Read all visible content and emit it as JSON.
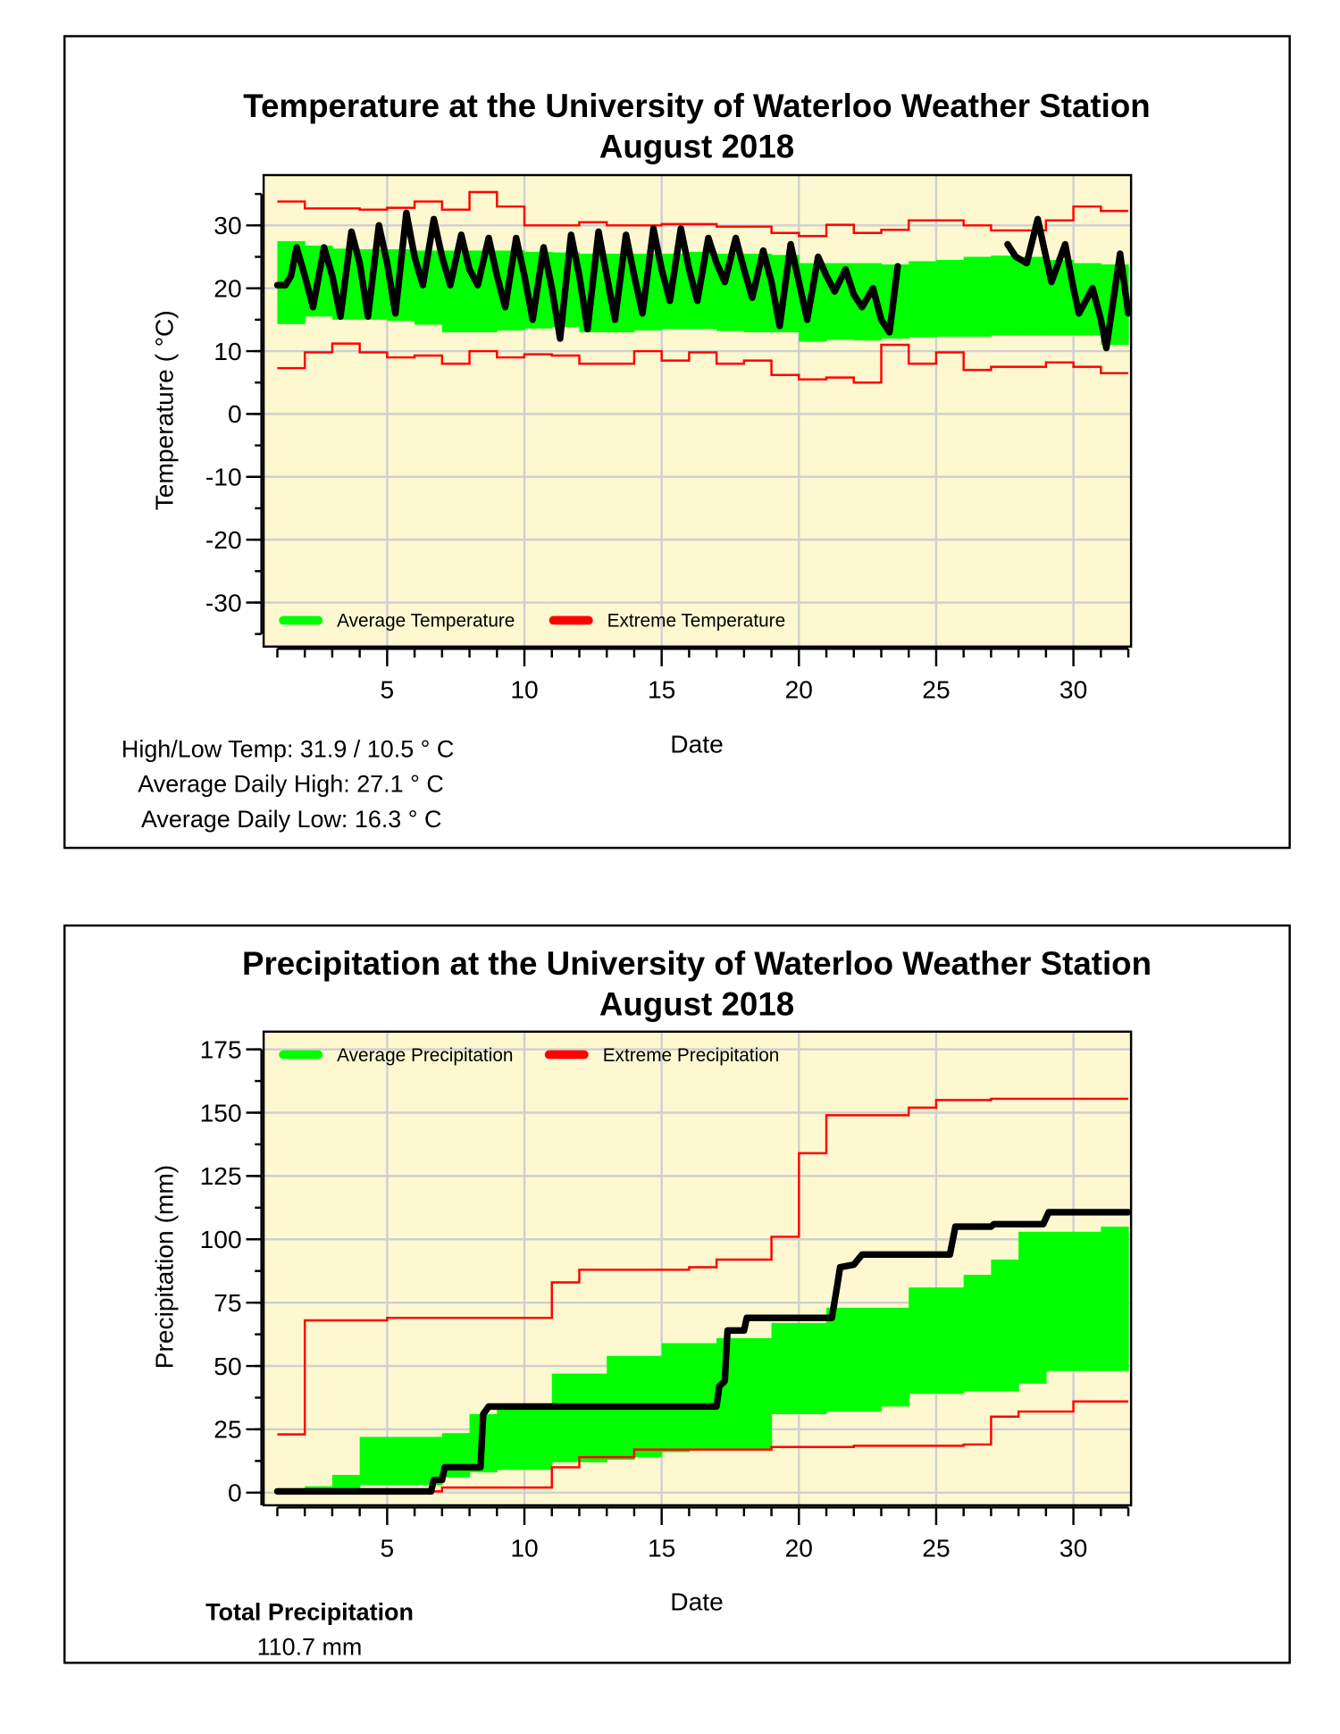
{
  "chart_data": [
    {
      "type": "line",
      "title": "Temperature at the University of Waterloo Weather Station",
      "subtitle": "August 2018",
      "xlabel": "Date",
      "ylabel": "Temperature ( °C)",
      "xlim": [
        0.5,
        32.1
      ],
      "ylim": [
        -37,
        38
      ],
      "xticks": [
        5,
        10,
        15,
        20,
        25,
        30
      ],
      "yticks": [
        30,
        20,
        10,
        0,
        -10,
        -20,
        -30
      ],
      "grid": true,
      "legend": {
        "placement": "bottom-left",
        "entries": [
          "Average Temperature",
          "Extreme Temperature"
        ]
      },
      "colors": {
        "average": "#00ff00",
        "extreme": "#ff0000",
        "observed": "#000000",
        "background": "#fdf8d0"
      },
      "average_band": {
        "days": [
          1,
          2,
          3,
          4,
          5,
          6,
          7,
          8,
          9,
          10,
          11,
          12,
          13,
          14,
          15,
          16,
          17,
          18,
          19,
          20,
          21,
          22,
          23,
          24,
          25,
          26,
          27,
          28,
          29,
          30,
          31
        ],
        "high": [
          27.5,
          26.8,
          26.3,
          26.2,
          26.2,
          26,
          26,
          26,
          26,
          25.8,
          25.7,
          25.5,
          25.5,
          25.5,
          25.5,
          25.8,
          25.5,
          25.5,
          25.3,
          24,
          24,
          24,
          23.8,
          24.3,
          24.5,
          25,
          25.2,
          25,
          24.5,
          24,
          23.8
        ],
        "low": [
          14.3,
          15.5,
          15,
          15,
          14.8,
          14.2,
          13,
          13,
          13.3,
          13.6,
          13.8,
          13,
          13,
          13.3,
          13.5,
          13.5,
          13.2,
          13,
          13,
          11.5,
          11.8,
          11.7,
          12,
          12.2,
          12.3,
          12.3,
          12.5,
          12.5,
          12.5,
          12.5,
          11
        ]
      },
      "extreme_max": [
        33.8,
        32.7,
        32.7,
        32.5,
        32.8,
        33.8,
        32.5,
        35.3,
        33,
        30,
        30,
        30.5,
        30,
        30,
        30.2,
        30.2,
        29.8,
        29.8,
        28.8,
        28.3,
        30.1,
        28.8,
        29.3,
        30.8,
        30.8,
        30,
        29.2,
        29.2,
        30.8,
        33,
        32.3
      ],
      "extreme_min": [
        7.3,
        9.8,
        11.2,
        9.8,
        9,
        9.3,
        8,
        10,
        9,
        9.5,
        9.3,
        8,
        8,
        10,
        8.5,
        9.8,
        8,
        8.5,
        6.2,
        5.5,
        5.8,
        5,
        11,
        8,
        9.8,
        7,
        7.5,
        7.5,
        8.2,
        7.5,
        6.5
      ],
      "observed_segments": [
        [
          [
            1,
            20.5
          ],
          [
            1.3,
            20.5
          ],
          [
            1.5,
            22
          ],
          [
            1.7,
            26.5
          ],
          [
            2.0,
            22
          ],
          [
            2.3,
            17
          ],
          [
            2.7,
            26.5
          ],
          [
            3.0,
            22
          ],
          [
            3.3,
            15.5
          ],
          [
            3.7,
            29
          ],
          [
            4.0,
            24
          ],
          [
            4.3,
            15.5
          ],
          [
            4.7,
            30
          ],
          [
            5.0,
            24
          ],
          [
            5.3,
            16
          ],
          [
            5.7,
            32
          ],
          [
            6.0,
            25
          ],
          [
            6.3,
            20.5
          ],
          [
            6.7,
            31
          ],
          [
            7.0,
            25
          ],
          [
            7.3,
            20.5
          ],
          [
            7.7,
            28.5
          ],
          [
            8.0,
            23
          ],
          [
            8.3,
            20.5
          ],
          [
            8.7,
            28
          ],
          [
            9.0,
            22
          ],
          [
            9.3,
            17
          ],
          [
            9.7,
            28
          ],
          [
            10.0,
            22
          ],
          [
            10.3,
            15
          ],
          [
            10.7,
            26.5
          ],
          [
            11.0,
            20
          ],
          [
            11.3,
            12
          ],
          [
            11.7,
            28.5
          ],
          [
            12.0,
            22
          ],
          [
            12.3,
            13.5
          ],
          [
            12.7,
            29
          ],
          [
            13.0,
            22
          ],
          [
            13.3,
            15
          ],
          [
            13.7,
            28.5
          ],
          [
            14.0,
            22
          ],
          [
            14.3,
            16
          ],
          [
            14.7,
            29.5
          ],
          [
            15.0,
            23
          ],
          [
            15.3,
            18
          ],
          [
            15.7,
            29.5
          ],
          [
            16.0,
            23
          ],
          [
            16.3,
            18
          ],
          [
            16.7,
            28
          ],
          [
            17.0,
            24
          ],
          [
            17.3,
            21
          ],
          [
            17.7,
            28
          ],
          [
            18.0,
            23
          ],
          [
            18.3,
            18.5
          ],
          [
            18.7,
            26
          ],
          [
            19.0,
            21
          ],
          [
            19.3,
            14
          ],
          [
            19.7,
            27
          ],
          [
            20.0,
            21
          ],
          [
            20.3,
            15
          ],
          [
            20.7,
            25
          ],
          [
            21.0,
            22
          ],
          [
            21.3,
            19.5
          ],
          [
            21.7,
            23
          ],
          [
            22.0,
            19
          ],
          [
            22.3,
            17
          ],
          [
            22.7,
            20
          ],
          [
            23.0,
            15
          ],
          [
            23.3,
            13
          ],
          [
            23.6,
            23.5
          ]
        ],
        [
          [
            27.6,
            27
          ],
          [
            27.9,
            25
          ],
          [
            28.3,
            24
          ],
          [
            28.7,
            31
          ],
          [
            29.0,
            25
          ],
          [
            29.2,
            21
          ],
          [
            29.7,
            27
          ],
          [
            30.0,
            20
          ],
          [
            30.2,
            16
          ],
          [
            30.7,
            20
          ],
          [
            31.0,
            15
          ],
          [
            31.2,
            10.5
          ],
          [
            31.7,
            25.5
          ],
          [
            32.0,
            16
          ]
        ]
      ]
    },
    {
      "type": "line",
      "title": "Precipitation at the University of Waterloo Weather Station",
      "subtitle": "August 2018",
      "xlabel": "Date",
      "ylabel": "Precipitation (mm)",
      "xlim": [
        0.5,
        32.1
      ],
      "ylim": [
        -5,
        182
      ],
      "xticks": [
        5,
        10,
        15,
        20,
        25,
        30
      ],
      "yticks": [
        0,
        25,
        50,
        75,
        100,
        125,
        150,
        175
      ],
      "grid": true,
      "legend": {
        "placement": "top-left",
        "entries": [
          "Average Precipitation",
          "Extreme Precipitation"
        ]
      },
      "colors": {
        "average": "#00ff00",
        "extreme": "#ff0000",
        "observed": "#000000",
        "background": "#fdf8d0"
      },
      "average_band": {
        "days": [
          1,
          2,
          3,
          4,
          5,
          6,
          7,
          8,
          9,
          10,
          11,
          12,
          13,
          14,
          15,
          16,
          17,
          18,
          19,
          20,
          21,
          22,
          23,
          24,
          25,
          26,
          27,
          28,
          29,
          30,
          31
        ],
        "high": [
          0.5,
          2.5,
          7,
          22,
          22,
          22,
          23.5,
          31,
          33,
          33,
          47,
          47,
          54,
          54,
          59,
          59,
          61,
          61,
          67,
          67,
          73,
          73,
          73,
          81,
          81,
          86,
          92,
          103,
          103,
          103,
          105
        ],
        "low": [
          0,
          0.5,
          1,
          3,
          3,
          3,
          6,
          8,
          9,
          9,
          12,
          12,
          13,
          14,
          16,
          17,
          17,
          17,
          31,
          31,
          32,
          32,
          34,
          39,
          39,
          40,
          40,
          43,
          48,
          48,
          48
        ]
      },
      "extreme_max": [
        23,
        68,
        68,
        68,
        69,
        69,
        69,
        69,
        69,
        69,
        83,
        88,
        88,
        88,
        88,
        89,
        92,
        92,
        101,
        134,
        149,
        149,
        149,
        152,
        155,
        155,
        155.5,
        155.5,
        155.5,
        155.5,
        155.5
      ],
      "extreme_min": [
        0,
        0,
        0,
        0,
        0,
        0.5,
        2,
        2,
        2,
        2,
        10,
        14,
        14,
        17,
        17,
        17,
        17,
        17,
        18,
        18,
        18,
        18.5,
        18.5,
        18.5,
        18.5,
        19,
        30,
        32,
        32,
        36,
        36
      ],
      "observed_segments": [
        [
          [
            1,
            0.5
          ],
          [
            6.6,
            0.5
          ],
          [
            6.7,
            5
          ],
          [
            7.0,
            5
          ],
          [
            7.1,
            10
          ],
          [
            8.4,
            10
          ],
          [
            8.5,
            31
          ],
          [
            8.7,
            34
          ],
          [
            17.0,
            34
          ],
          [
            17.1,
            42
          ],
          [
            17.3,
            44
          ],
          [
            17.4,
            64
          ],
          [
            18.0,
            64
          ],
          [
            18.1,
            69
          ],
          [
            21.2,
            69
          ],
          [
            21.4,
            82
          ],
          [
            21.5,
            89
          ],
          [
            22.0,
            90
          ],
          [
            22.3,
            94
          ],
          [
            25.5,
            94
          ],
          [
            25.7,
            105
          ],
          [
            27.0,
            105
          ],
          [
            27.1,
            106
          ],
          [
            28.9,
            106
          ],
          [
            29.1,
            110.7
          ],
          [
            32.0,
            110.7
          ]
        ]
      ]
    }
  ],
  "temp_stats": {
    "high_low": "High/Low Temp:  31.9 / 10.5 ° C",
    "avg_high": "Average Daily High:  27.1 ° C",
    "avg_low": "Average Daily Low:  16.3 ° C"
  },
  "precip_stats": {
    "label": "Total Precipitation",
    "value": "110.7 mm"
  }
}
